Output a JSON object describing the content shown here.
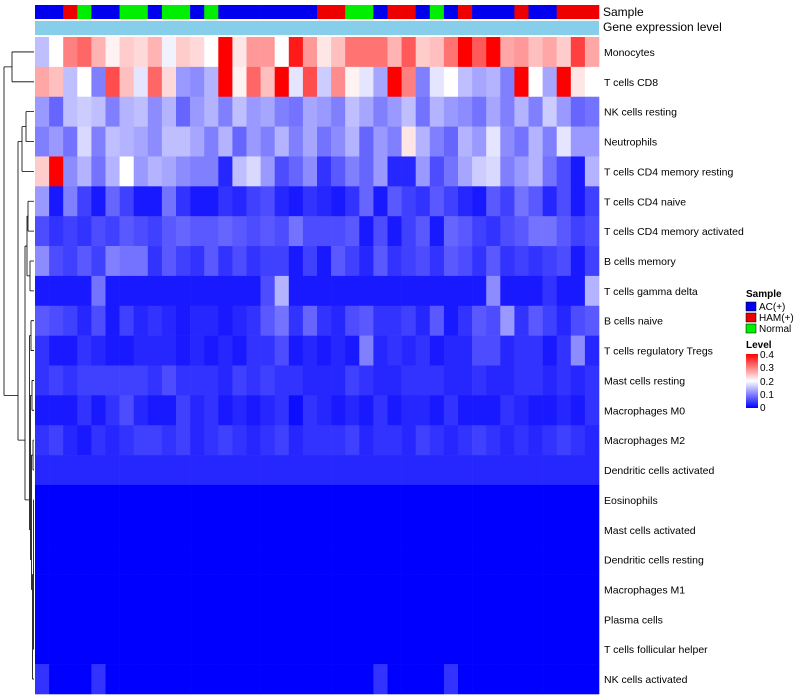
{
  "chart_data": {
    "type": "heatmap",
    "title": "",
    "annotation_tracks": [
      {
        "name": "Sample",
        "label": "Sample"
      },
      {
        "name": "Gene expression level",
        "label": "Gene expression level"
      }
    ],
    "sample_groups": [
      "AC(+)",
      "AC(+)",
      "HAM(+)",
      "Normal",
      "AC(+)",
      "AC(+)",
      "Normal",
      "Normal",
      "AC(+)",
      "Normal",
      "Normal",
      "AC(+)",
      "Normal",
      "AC(+)",
      "AC(+)",
      "AC(+)",
      "AC(+)",
      "AC(+)",
      "AC(+)",
      "AC(+)",
      "HAM(+)",
      "HAM(+)",
      "Normal",
      "Normal",
      "AC(+)",
      "HAM(+)",
      "HAM(+)",
      "AC(+)",
      "Normal",
      "AC(+)",
      "HAM(+)",
      "AC(+)",
      "AC(+)",
      "AC(+)",
      "HAM(+)",
      "AC(+)",
      "AC(+)",
      "HAM(+)",
      "HAM(+)",
      "HAM(+)"
    ],
    "rows": [
      "Monocytes",
      "T cells CD8",
      "NK cells resting",
      "Neutrophils",
      "T cells CD4 memory resting",
      "T cells CD4 naive",
      "T cells CD4 memory activated",
      "B cells memory",
      "T cells gamma delta",
      "B cells naive",
      "T cells regulatory  Tregs",
      "Mast cells resting",
      "Macrophages M0",
      "Macrophages M2",
      "Dendritic cells activated",
      "Eosinophils",
      "Mast cells activated",
      "Dendritic cells resting",
      "Macrophages M1",
      "Plasma cells",
      "T cells follicular helper",
      "NK cells activated"
    ],
    "values": [
      [
        0.15,
        0.2,
        0.3,
        0.32,
        0.26,
        0.21,
        0.24,
        0.23,
        0.26,
        0.19,
        0.24,
        0.23,
        0.2,
        0.4,
        0.22,
        0.28,
        0.28,
        0.2,
        0.38,
        0.28,
        0.22,
        0.25,
        0.31,
        0.31,
        0.31,
        0.26,
        0.33,
        0.24,
        0.25,
        0.31,
        0.4,
        0.33,
        0.4,
        0.27,
        0.28,
        0.25,
        0.27,
        0.24,
        0.35,
        0.27
      ],
      [
        0.27,
        0.25,
        0.15,
        0.2,
        0.1,
        0.34,
        0.25,
        0.18,
        0.32,
        0.23,
        0.12,
        0.11,
        0.14,
        0.4,
        0.21,
        0.32,
        0.25,
        0.4,
        0.18,
        0.34,
        0.16,
        0.29,
        0.21,
        0.18,
        0.13,
        0.4,
        0.3,
        0.1,
        0.18,
        0.2,
        0.15,
        0.13,
        0.14,
        0.1,
        0.4,
        0.2,
        0.13,
        0.4,
        0.22,
        0.2
      ],
      [
        0.12,
        0.08,
        0.15,
        0.16,
        0.15,
        0.1,
        0.14,
        0.15,
        0.11,
        0.14,
        0.08,
        0.12,
        0.14,
        0.1,
        0.15,
        0.12,
        0.13,
        0.1,
        0.09,
        0.13,
        0.12,
        0.1,
        0.15,
        0.13,
        0.1,
        0.12,
        0.15,
        0.09,
        0.14,
        0.12,
        0.11,
        0.09,
        0.13,
        0.1,
        0.14,
        0.1,
        0.16,
        0.12,
        0.08,
        0.09
      ],
      [
        0.1,
        0.12,
        0.09,
        0.17,
        0.1,
        0.15,
        0.14,
        0.13,
        0.11,
        0.15,
        0.15,
        0.13,
        0.1,
        0.14,
        0.08,
        0.12,
        0.1,
        0.14,
        0.1,
        0.13,
        0.09,
        0.11,
        0.14,
        0.08,
        0.12,
        0.1,
        0.22,
        0.14,
        0.1,
        0.08,
        0.14,
        0.12,
        0.18,
        0.11,
        0.09,
        0.14,
        0.1,
        0.18,
        0.12,
        0.12
      ],
      [
        0.24,
        0.4,
        0.11,
        0.14,
        0.09,
        0.14,
        0.2,
        0.12,
        0.14,
        0.13,
        0.11,
        0.1,
        0.1,
        0.03,
        0.15,
        0.17,
        0.12,
        0.06,
        0.08,
        0.11,
        0.04,
        0.07,
        0.1,
        0.08,
        0.12,
        0.03,
        0.03,
        0.12,
        0.06,
        0.09,
        0.13,
        0.16,
        0.17,
        0.1,
        0.12,
        0.14,
        0.09,
        0.06,
        0.02,
        0.14
      ],
      [
        0.12,
        0.02,
        0.1,
        0.05,
        0.02,
        0.08,
        0.05,
        0.02,
        0.02,
        0.09,
        0.04,
        0.02,
        0.02,
        0.04,
        0.03,
        0.05,
        0.06,
        0.03,
        0.02,
        0.04,
        0.03,
        0.02,
        0.04,
        0.08,
        0.02,
        0.07,
        0.05,
        0.04,
        0.07,
        0.05,
        0.03,
        0.02,
        0.07,
        0.05,
        0.09,
        0.07,
        0.03,
        0.06,
        0.02,
        0.05
      ],
      [
        0.06,
        0.04,
        0.05,
        0.04,
        0.06,
        0.05,
        0.07,
        0.06,
        0.05,
        0.07,
        0.08,
        0.07,
        0.07,
        0.08,
        0.07,
        0.06,
        0.07,
        0.06,
        0.09,
        0.06,
        0.06,
        0.06,
        0.07,
        0.02,
        0.06,
        0.02,
        0.05,
        0.07,
        0.02,
        0.08,
        0.07,
        0.05,
        0.04,
        0.06,
        0.07,
        0.09,
        0.09,
        0.07,
        0.05,
        0.06
      ],
      [
        0.11,
        0.06,
        0.05,
        0.07,
        0.05,
        0.1,
        0.09,
        0.09,
        0.04,
        0.07,
        0.05,
        0.04,
        0.07,
        0.04,
        0.06,
        0.04,
        0.05,
        0.05,
        0.02,
        0.05,
        0.02,
        0.07,
        0.05,
        0.03,
        0.07,
        0.04,
        0.05,
        0.06,
        0.04,
        0.07,
        0.06,
        0.04,
        0.07,
        0.04,
        0.05,
        0.04,
        0.05,
        0.06,
        0.02,
        0.05
      ],
      [
        0.02,
        0.02,
        0.02,
        0.02,
        0.09,
        0.02,
        0.02,
        0.02,
        0.02,
        0.02,
        0.02,
        0.02,
        0.02,
        0.02,
        0.02,
        0.02,
        0.06,
        0.14,
        0.02,
        0.02,
        0.02,
        0.02,
        0.02,
        0.02,
        0.02,
        0.02,
        0.02,
        0.02,
        0.02,
        0.02,
        0.02,
        0.02,
        0.11,
        0.02,
        0.02,
        0.02,
        0.04,
        0.02,
        0.02,
        0.14
      ],
      [
        0.07,
        0.06,
        0.05,
        0.03,
        0.06,
        0.02,
        0.05,
        0.03,
        0.04,
        0.03,
        0.02,
        0.03,
        0.03,
        0.02,
        0.03,
        0.04,
        0.07,
        0.09,
        0.04,
        0.08,
        0.04,
        0.03,
        0.06,
        0.07,
        0.04,
        0.04,
        0.05,
        0.03,
        0.07,
        0.02,
        0.04,
        0.07,
        0.06,
        0.12,
        0.04,
        0.07,
        0.05,
        0.03,
        0.06,
        0.07
      ],
      [
        0.04,
        0.02,
        0.02,
        0.04,
        0.03,
        0.02,
        0.02,
        0.03,
        0.03,
        0.03,
        0.02,
        0.03,
        0.02,
        0.03,
        0.02,
        0.04,
        0.04,
        0.06,
        0.02,
        0.03,
        0.02,
        0.03,
        0.02,
        0.1,
        0.03,
        0.04,
        0.03,
        0.04,
        0.02,
        0.03,
        0.03,
        0.06,
        0.06,
        0.03,
        0.04,
        0.04,
        0.02,
        0.04,
        0.11,
        0.03
      ],
      [
        0.04,
        0.05,
        0.04,
        0.05,
        0.05,
        0.05,
        0.05,
        0.05,
        0.04,
        0.06,
        0.04,
        0.04,
        0.04,
        0.03,
        0.05,
        0.04,
        0.05,
        0.04,
        0.04,
        0.03,
        0.03,
        0.03,
        0.05,
        0.04,
        0.03,
        0.03,
        0.04,
        0.04,
        0.04,
        0.03,
        0.03,
        0.04,
        0.03,
        0.03,
        0.04,
        0.04,
        0.03,
        0.04,
        0.03,
        0.04
      ],
      [
        0.02,
        0.02,
        0.02,
        0.04,
        0.02,
        0.04,
        0.06,
        0.03,
        0.02,
        0.02,
        0.05,
        0.03,
        0.04,
        0.02,
        0.03,
        0.02,
        0.03,
        0.04,
        0.01,
        0.04,
        0.03,
        0.02,
        0.03,
        0.02,
        0.04,
        0.02,
        0.03,
        0.03,
        0.02,
        0.04,
        0.02,
        0.02,
        0.02,
        0.04,
        0.03,
        0.02,
        0.02,
        0.03,
        0.02,
        0.04
      ],
      [
        0.04,
        0.05,
        0.03,
        0.02,
        0.04,
        0.03,
        0.04,
        0.05,
        0.05,
        0.04,
        0.05,
        0.03,
        0.04,
        0.05,
        0.04,
        0.03,
        0.04,
        0.05,
        0.03,
        0.04,
        0.04,
        0.04,
        0.05,
        0.03,
        0.04,
        0.04,
        0.03,
        0.05,
        0.04,
        0.03,
        0.04,
        0.05,
        0.04,
        0.03,
        0.04,
        0.03,
        0.04,
        0.05,
        0.04,
        0.03
      ],
      [
        0.03,
        0.03,
        0.03,
        0.03,
        0.03,
        0.03,
        0.03,
        0.03,
        0.03,
        0.03,
        0.03,
        0.03,
        0.03,
        0.03,
        0.03,
        0.03,
        0.03,
        0.03,
        0.03,
        0.03,
        0.03,
        0.03,
        0.03,
        0.03,
        0.03,
        0.03,
        0.03,
        0.03,
        0.03,
        0.03,
        0.03,
        0.03,
        0.03,
        0.03,
        0.03,
        0.03,
        0.03,
        0.03,
        0.03,
        0.03
      ],
      [
        0,
        0,
        0,
        0,
        0,
        0,
        0,
        0,
        0,
        0,
        0,
        0,
        0,
        0,
        0,
        0,
        0,
        0,
        0,
        0,
        0,
        0,
        0,
        0,
        0,
        0,
        0,
        0,
        0,
        0,
        0,
        0,
        0,
        0,
        0,
        0,
        0,
        0,
        0,
        0
      ],
      [
        0,
        0,
        0,
        0,
        0,
        0,
        0,
        0,
        0,
        0,
        0,
        0,
        0,
        0,
        0,
        0,
        0,
        0,
        0,
        0,
        0,
        0,
        0,
        0,
        0,
        0,
        0,
        0,
        0,
        0,
        0,
        0,
        0,
        0,
        0,
        0,
        0,
        0,
        0,
        0
      ],
      [
        0,
        0,
        0,
        0,
        0,
        0,
        0,
        0,
        0,
        0,
        0,
        0,
        0,
        0,
        0,
        0,
        0,
        0,
        0,
        0,
        0,
        0,
        0,
        0,
        0,
        0,
        0,
        0,
        0,
        0,
        0,
        0,
        0,
        0,
        0,
        0,
        0,
        0,
        0,
        0
      ],
      [
        0,
        0,
        0,
        0,
        0,
        0,
        0,
        0,
        0,
        0,
        0,
        0,
        0,
        0,
        0,
        0,
        0,
        0,
        0,
        0,
        0,
        0,
        0,
        0,
        0,
        0,
        0,
        0,
        0,
        0,
        0,
        0,
        0,
        0,
        0,
        0,
        0,
        0,
        0,
        0
      ],
      [
        0,
        0,
        0,
        0,
        0,
        0,
        0,
        0,
        0,
        0,
        0,
        0,
        0,
        0,
        0,
        0,
        0,
        0,
        0,
        0,
        0,
        0,
        0,
        0,
        0,
        0,
        0,
        0,
        0,
        0,
        0,
        0,
        0,
        0,
        0,
        0,
        0,
        0,
        0,
        0
      ],
      [
        0,
        0,
        0,
        0,
        0,
        0,
        0,
        0,
        0,
        0,
        0,
        0,
        0,
        0,
        0,
        0,
        0,
        0,
        0,
        0,
        0,
        0,
        0,
        0,
        0,
        0,
        0,
        0,
        0,
        0,
        0,
        0,
        0,
        0,
        0,
        0,
        0,
        0,
        0,
        0
      ],
      [
        0.04,
        0,
        0,
        0,
        0.04,
        0,
        0,
        0,
        0,
        0,
        0,
        0,
        0,
        0,
        0,
        0,
        0,
        0,
        0,
        0,
        0,
        0,
        0,
        0,
        0.04,
        0,
        0,
        0,
        0,
        0.04,
        0,
        0,
        0,
        0,
        0,
        0,
        0,
        0,
        0,
        0
      ]
    ],
    "color_scale": {
      "min": 0,
      "max": 0.4,
      "colors": [
        "#0000ff",
        "#ffffff",
        "#ff0000"
      ]
    },
    "expression_bar_color": "#87ceeb",
    "legend_sample": {
      "title": "Sample",
      "entries": [
        {
          "label": "AC(+)",
          "color": "#0000ee"
        },
        {
          "label": "HAM(+)",
          "color": "#ee0000"
        },
        {
          "label": "Normal",
          "color": "#00ee00"
        }
      ]
    },
    "legend_level": {
      "title": "Level",
      "ticks": [
        "0.4",
        "0.3",
        "0.2",
        "0.1",
        "0"
      ]
    }
  }
}
